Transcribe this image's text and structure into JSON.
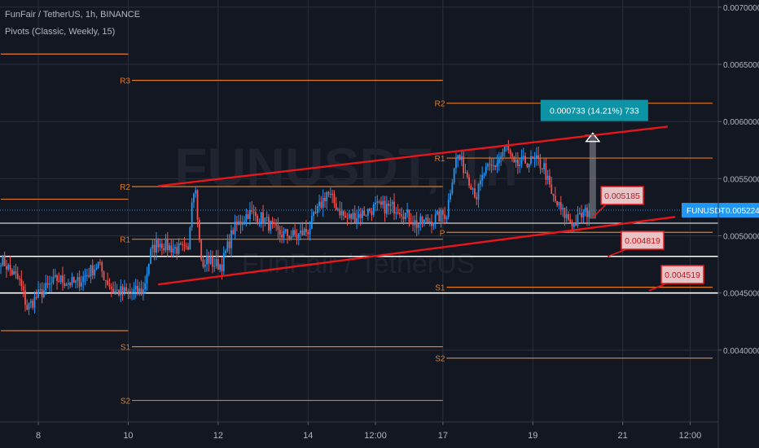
{
  "header": {
    "title": "FunFair / TetherUS, 1h, BINANCE",
    "indicator": "Pivots (Classic, Weekly, 15)"
  },
  "watermark": {
    "symbol": "FUNUSDT, 1h",
    "name": "FunFair / TetherUS"
  },
  "colors": {
    "background": "#131722",
    "grid": "#2a2e39",
    "candle_up": "#2196f3",
    "candle_down": "#ef5350",
    "pivot": "#e07a25",
    "channel": "#e8161b",
    "support": "#ffffff",
    "price_line": "#2196f3",
    "axis_text": "#b2b5be",
    "measure_label": "#0c94a6",
    "measure_arrow": "#8f9198"
  },
  "chart_data": {
    "type": "candlestick",
    "symbol": "FUNUSDT",
    "interval": "1h",
    "exchange": "BINANCE",
    "y_axis": {
      "min": 0.0035,
      "max": 0.00702,
      "ticks": [
        0.007,
        0.0065,
        0.006,
        0.0055,
        0.005,
        0.0045,
        0.004
      ],
      "tick_labels": [
        "0.0070000",
        "0.0065000",
        "0.0060000",
        "0.0055000",
        "0.0050000",
        "0.0045000",
        "0.0040000"
      ]
    },
    "x_axis": {
      "tick_labels": [
        "8",
        "10",
        "12",
        "14",
        "12:00",
        "17",
        "19",
        "21",
        "12:00"
      ],
      "tick_index": [
        20,
        68,
        116,
        164,
        200,
        236,
        284,
        332,
        368
      ]
    },
    "last_price": {
      "label": "FUNUSDT",
      "value": "0.005224",
      "price": 0.005224
    },
    "pivots": [
      {
        "label": "R3",
        "price": 0.00636,
        "start": 70,
        "end": 236
      },
      {
        "label": "R2",
        "price": 0.00543,
        "start": 70,
        "end": 236
      },
      {
        "label": "R1",
        "price": 0.00497,
        "start": 70,
        "end": 236
      },
      {
        "label": "S1",
        "price": 0.00403,
        "start": 70,
        "end": 236
      },
      {
        "label": "S2",
        "price": 0.00356,
        "start": 70,
        "end": 236
      },
      {
        "label": "R2",
        "price": 0.00616,
        "start": 238,
        "end": 380
      },
      {
        "label": "R1",
        "price": 0.00568,
        "start": 238,
        "end": 380
      },
      {
        "label": "P",
        "price": 0.00503,
        "start": 238,
        "end": 380
      },
      {
        "label": "S1",
        "price": 0.00455,
        "start": 238,
        "end": 380
      },
      {
        "label": "S2",
        "price": 0.00393,
        "start": 238,
        "end": 380
      }
    ],
    "prev_pivots": [
      {
        "price": 0.00659,
        "start": 0,
        "end": 68
      },
      {
        "price": 0.00532,
        "start": 0,
        "end": 68
      },
      {
        "price": 0.00417,
        "start": 0,
        "end": 68
      }
    ],
    "support_lines": [
      0.00482,
      0.0045,
      0.00511
    ],
    "channel": {
      "upper": [
        [
          84,
          0.005435
        ],
        [
          356,
          0.005955
        ]
      ],
      "lower": [
        [
          84,
          0.004575
        ],
        [
          360,
          0.005165
        ]
      ]
    },
    "measure": {
      "text": "0.000733 (14.21%) 733",
      "from": [
        316,
        0.00515
      ],
      "to": [
        316,
        0.005883
      ]
    },
    "annotations": [
      {
        "text": "0.005185",
        "price": 0.005185,
        "anchor": [
          316,
          0.00516
        ]
      },
      {
        "text": "0.004819",
        "price": 0.004819,
        "anchor": [
          324,
          0.004819
        ]
      },
      {
        "text": "0.004519",
        "price": 0.004519,
        "anchor": [
          346,
          0.004519
        ]
      }
    ],
    "path": [
      [
        0,
        0.0048
      ],
      [
        10,
        0.0046
      ],
      [
        14,
        0.00437
      ],
      [
        20,
        0.00448
      ],
      [
        30,
        0.00462
      ],
      [
        40,
        0.00458
      ],
      [
        52,
        0.00475
      ],
      [
        56,
        0.00462
      ],
      [
        60,
        0.00452
      ],
      [
        68,
        0.0045
      ],
      [
        76,
        0.00452
      ],
      [
        80,
        0.00485
      ],
      [
        84,
        0.00495
      ],
      [
        90,
        0.0049
      ],
      [
        96,
        0.00488
      ],
      [
        100,
        0.00485
      ],
      [
        102,
        0.00535
      ],
      [
        104,
        0.00545
      ],
      [
        106,
        0.00495
      ],
      [
        108,
        0.0047
      ],
      [
        110,
        0.0048
      ],
      [
        114,
        0.00475
      ],
      [
        118,
        0.00475
      ],
      [
        124,
        0.00505
      ],
      [
        132,
        0.0052
      ],
      [
        140,
        0.00515
      ],
      [
        148,
        0.00502
      ],
      [
        158,
        0.005
      ],
      [
        164,
        0.00505
      ],
      [
        174,
        0.00538
      ],
      [
        184,
        0.00515
      ],
      [
        194,
        0.0052
      ],
      [
        200,
        0.00525
      ],
      [
        212,
        0.00525
      ],
      [
        222,
        0.0051
      ],
      [
        232,
        0.00515
      ],
      [
        238,
        0.0052
      ],
      [
        242,
        0.00562
      ],
      [
        244,
        0.0057
      ],
      [
        250,
        0.0055
      ],
      [
        254,
        0.00535
      ],
      [
        258,
        0.00555
      ],
      [
        264,
        0.00562
      ],
      [
        270,
        0.00578
      ],
      [
        274,
        0.0056
      ],
      [
        280,
        0.00565
      ],
      [
        286,
        0.00565
      ],
      [
        290,
        0.0056
      ],
      [
        294,
        0.00535
      ],
      [
        300,
        0.0052
      ],
      [
        306,
        0.0051
      ],
      [
        310,
        0.00518
      ],
      [
        314,
        0.00522
      ]
    ]
  }
}
